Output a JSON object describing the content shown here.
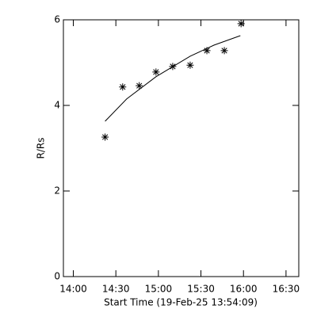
{
  "chart_data": {
    "type": "scatter",
    "xlabel": "Start Time (19-Feb-25 13:54:09)",
    "ylabel": "R/Rs",
    "xlim": [
      833,
      999
    ],
    "xticks": [
      {
        "value": 840,
        "label": "14:00"
      },
      {
        "value": 870,
        "label": "14:30"
      },
      {
        "value": 900,
        "label": "15:00"
      },
      {
        "value": 930,
        "label": "15:30"
      },
      {
        "value": 960,
        "label": "16:00"
      },
      {
        "value": 990,
        "label": "16:30"
      }
    ],
    "ylim": [
      0,
      6
    ],
    "yticks": [
      0,
      2,
      4,
      6
    ],
    "series": [
      {
        "type": "scatter",
        "marker": "*",
        "color": "#000000",
        "x": [
          862.4,
          874.8,
          886.5,
          898.3,
          910.1,
          922.4,
          934.2,
          946.5,
          958.3
        ],
        "values": [
          3.26,
          4.43,
          4.46,
          4.78,
          4.91,
          4.94,
          5.28,
          5.28,
          5.91
        ]
      },
      {
        "type": "line",
        "color": "#000000",
        "x": [
          862.4,
          877.6,
          898.3,
          922.4,
          939.3,
          957.8
        ],
        "values": [
          3.63,
          4.15,
          4.67,
          5.15,
          5.41,
          5.63
        ]
      }
    ]
  }
}
